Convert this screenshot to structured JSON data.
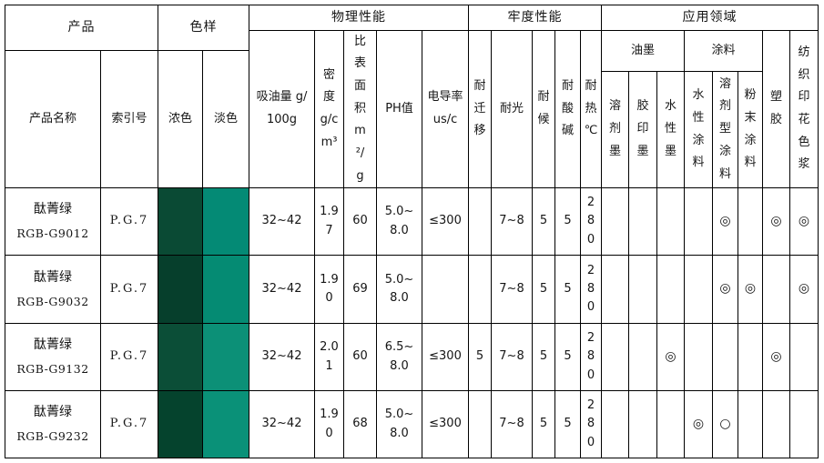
{
  "header": {
    "product": "产品",
    "color_sample": "色样",
    "physical": "物理性能",
    "fastness": "牢度性能",
    "application": "应用领域",
    "product_name": "产品名称",
    "index_no": "索引号",
    "dark": "浓色",
    "light": "淡色",
    "oil_absorption": "吸油量 g/100g",
    "density": "密度 g/cm³",
    "surface_area": "比表面积 m²/g",
    "ph": "PH值",
    "conductivity": "电导率 us/c",
    "migration": "耐迁移",
    "light_fastness": "耐光",
    "weather": "耐候",
    "acid_alkali": "耐酸碱",
    "heat": "耐热℃",
    "ink": "油墨",
    "coating": "涂料",
    "solvent_ink": "溶剂墨",
    "offset_ink": "胶印墨",
    "water_ink": "水性墨",
    "water_coating": "水性涂料",
    "solvent_coating": "溶剂型涂料",
    "powder_coating": "粉末涂料",
    "plastic": "塑胶",
    "textile_paste": "纺织印花色浆"
  },
  "rows": [
    {
      "name": "酞菁绿",
      "code": "RGB-G9012",
      "index": "P.G.7",
      "dark_color": "#0A4A34",
      "light_color": "#048A75",
      "oil_absorption": "32~42",
      "density": "1.97",
      "surface_area": "60",
      "ph": "5.0~8.0",
      "conductivity": "≤300",
      "migration": "",
      "light_fastness": "7~8",
      "weather": "5",
      "acid_alkali": "5",
      "heat": "280",
      "apps": [
        "",
        "",
        "",
        "",
        "◎",
        "",
        "◎",
        "◎"
      ]
    },
    {
      "name": "酞菁绿",
      "code": "RGB-G9032",
      "index": "P.G.7",
      "dark_color": "#063F2C",
      "light_color": "#058B73",
      "oil_absorption": "32~42",
      "density": "1.90",
      "surface_area": "69",
      "ph": "5.0~8.0",
      "conductivity": "",
      "migration": "",
      "light_fastness": "7~8",
      "weather": "5",
      "acid_alkali": "5",
      "heat": "280",
      "apps": [
        "",
        "",
        "",
        "",
        "◎",
        "◎",
        "",
        "◎"
      ]
    },
    {
      "name": "酞菁绿",
      "code": "RGB-G9132",
      "index": "P.G.7",
      "dark_color": "#0B4E37",
      "light_color": "#0C9077",
      "oil_absorption": "32~42",
      "density": "2.01",
      "surface_area": "60",
      "ph": "6.5~8.0",
      "conductivity": "≤300",
      "migration": "5",
      "light_fastness": "7~8",
      "weather": "5",
      "acid_alkali": "5",
      "heat": "280",
      "apps": [
        "",
        "",
        "◎",
        "",
        "",
        "",
        "◎",
        ""
      ]
    },
    {
      "name": "酞菁绿",
      "code": "RGB-G9232",
      "index": "P.G.7",
      "dark_color": "#05432D",
      "light_color": "#0A9178",
      "oil_absorption": "32~42",
      "density": "1.90",
      "surface_area": "68",
      "ph": "5.0~8.0",
      "conductivity": "≤300",
      "migration": "",
      "light_fastness": "7~8",
      "weather": "5",
      "acid_alkali": "5",
      "heat": "280",
      "apps": [
        "",
        "",
        "",
        "◎",
        "○",
        "",
        "",
        ""
      ]
    }
  ]
}
